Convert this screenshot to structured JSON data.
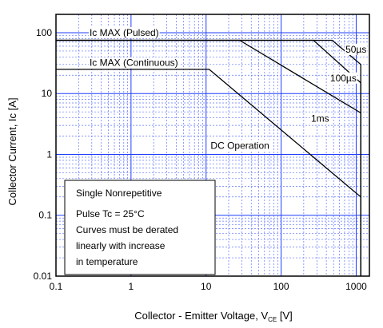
{
  "chart_data": {
    "type": "line",
    "x_scale": "log",
    "y_scale": "log",
    "xlim": [
      0.1,
      1500
    ],
    "ylim": [
      0.01,
      200
    ],
    "x_ticks": [
      {
        "value": 0.1,
        "label": "0.1"
      },
      {
        "value": 1,
        "label": "1"
      },
      {
        "value": 10,
        "label": "10"
      },
      {
        "value": 100,
        "label": "100"
      },
      {
        "value": 1000,
        "label": "1000"
      }
    ],
    "y_ticks": [
      {
        "value": 100,
        "label": "100"
      },
      {
        "value": 10,
        "label": "10"
      },
      {
        "value": 1,
        "label": "1"
      },
      {
        "value": 0.1,
        "label": "0.1"
      },
      {
        "value": 0.01,
        "label": "0.01"
      }
    ],
    "xlabel": {
      "main": "Collector - Emitter Voltage, V",
      "sub": "CE",
      "tail": " [V]"
    },
    "ylabel": "Collector Current, Ic [A]",
    "grid": true,
    "series": [
      {
        "name": "50µs",
        "points": [
          [
            0.1,
            75
          ],
          [
            480,
            75
          ],
          [
            1150,
            30
          ],
          [
            1150,
            0.01
          ]
        ]
      },
      {
        "name": "100µs",
        "points": [
          [
            0.1,
            75
          ],
          [
            270,
            75
          ],
          [
            1150,
            15
          ],
          [
            1150,
            0.01
          ]
        ]
      },
      {
        "name": "1ms",
        "points": [
          [
            0.1,
            75
          ],
          [
            28,
            75
          ],
          [
            1150,
            4.8
          ],
          [
            1150,
            0.01
          ]
        ]
      },
      {
        "name": "DC Operation",
        "points": [
          [
            0.1,
            25
          ],
          [
            11,
            25
          ],
          [
            1150,
            0.2
          ],
          [
            1150,
            0.01
          ]
        ]
      }
    ],
    "annotations": [
      {
        "text": "Ic MAX (Pulsed)",
        "x": 0.28,
        "y": 100
      },
      {
        "text": "Ic MAX (Continuous)",
        "x": 0.28,
        "y": 32
      },
      {
        "text": "50µs",
        "x": 720,
        "y": 53
      },
      {
        "text": "100µs",
        "x": 450,
        "y": 18
      },
      {
        "text": "1ms",
        "x": 250,
        "y": 3.9
      },
      {
        "text": "DC Operation",
        "x": 11.5,
        "y": 1.4
      }
    ],
    "note_lines": [
      "Single Nonrepetitive",
      "Pulse Tc = 25°C",
      "Curves must be derated",
      "linearly with increase",
      "in temperature"
    ]
  }
}
